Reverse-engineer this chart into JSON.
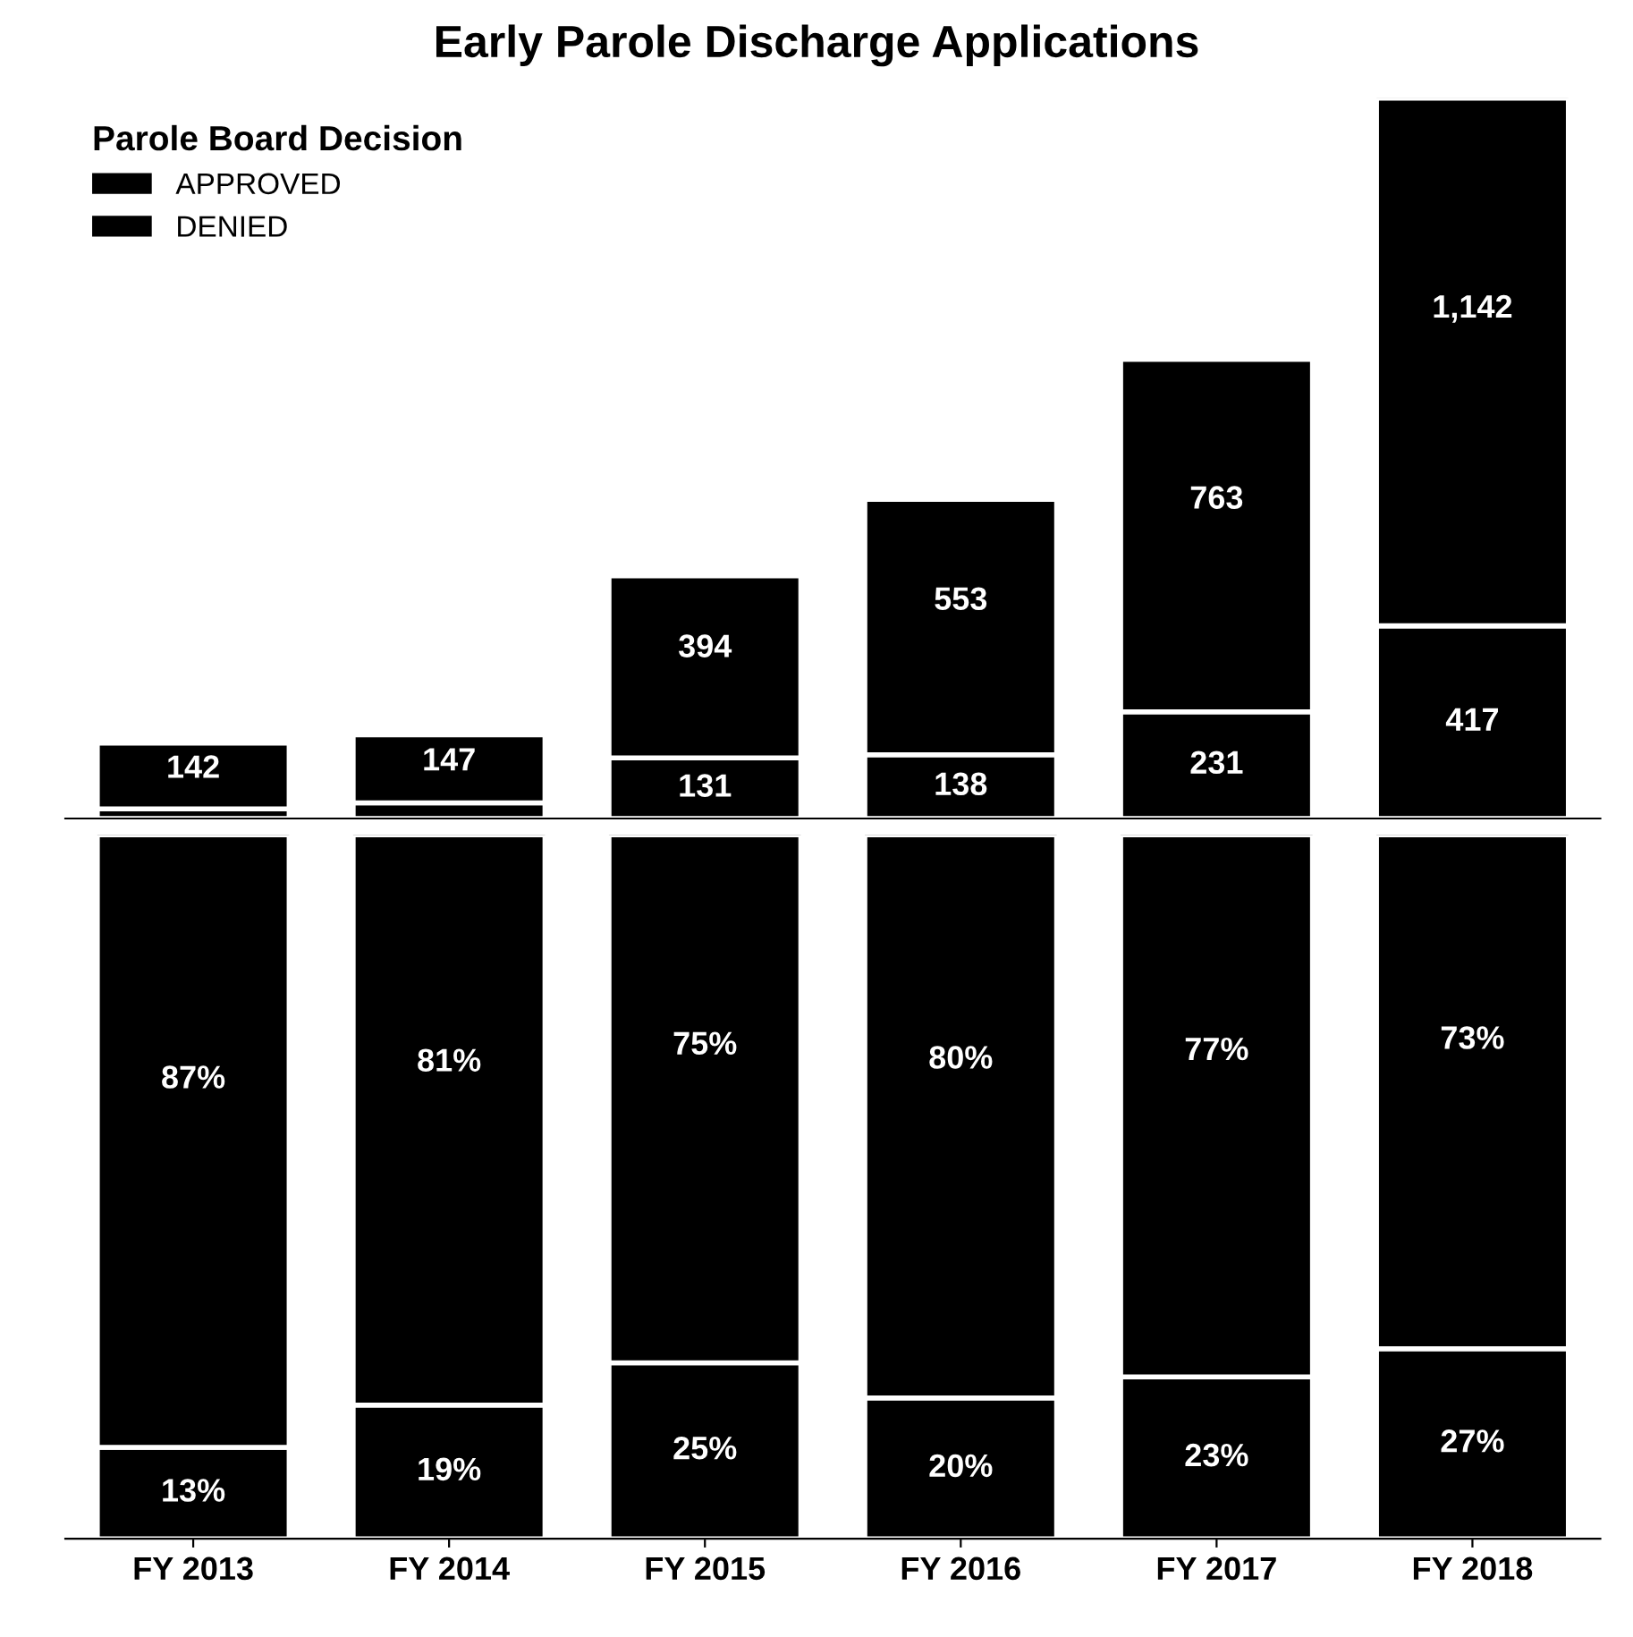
{
  "chart_data": [
    {
      "type": "bar",
      "title": "Early Parole Discharge Applications",
      "stacked": true,
      "legend": "top left",
      "legend_title": "Parole Board Decision",
      "tick_labels": false,
      "categories": [
        null,
        null,
        null,
        null,
        null,
        null
      ],
      "series": [
        {
          "name": "APPROVED",
          "color": "#000000",
          "values": [
            21,
            34,
            131,
            138,
            231,
            417
          ],
          "value_labels": [
            null,
            null,
            "131",
            "138",
            "231",
            "417"
          ]
        },
        {
          "name": "DENIED",
          "color": "#000000",
          "values": [
            142,
            147,
            394,
            553,
            763,
            1142
          ],
          "value_labels": [
            "142",
            "147",
            "394",
            "553",
            "763",
            "1,142"
          ]
        }
      ]
    },
    {
      "type": "bar",
      "stacked": true,
      "tick_labels": "x",
      "categories": [
        "FY 2013",
        "FY 2014",
        "FY 2015",
        "FY 2016",
        "FY 2017",
        "FY 2018"
      ],
      "series": [
        {
          "color": "#000000",
          "values": [
            13,
            19,
            25,
            20,
            23,
            27
          ],
          "value_labels": [
            "13%",
            "19%",
            "25%",
            "20%",
            "23%",
            "27%"
          ]
        },
        {
          "color": "#000000",
          "values": [
            87,
            81,
            75,
            80,
            77,
            73
          ],
          "value_labels": [
            "87%",
            "81%",
            "75%",
            "80%",
            "77%",
            "73%"
          ]
        }
      ]
    }
  ]
}
